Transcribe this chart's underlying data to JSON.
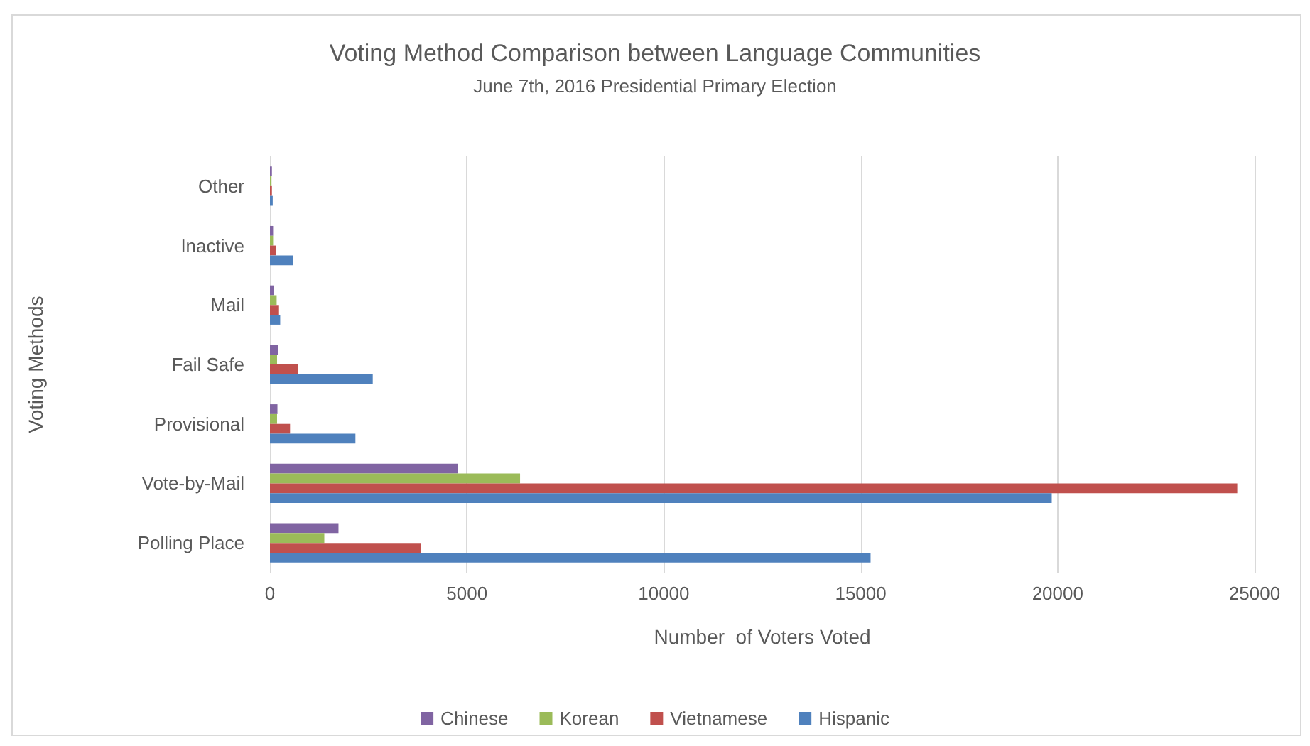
{
  "chart_data": {
    "type": "bar",
    "orientation": "horizontal",
    "title": "Voting Method Comparison between Language Communities",
    "subtitle": "June 7th, 2016 Presidential Primary Election",
    "xlabel": "Number  of Voters Voted",
    "ylabel": "Voting Methods",
    "categories": [
      "Other",
      "Inactive",
      "Mail",
      "Fail Safe",
      "Provisional",
      "Vote-by-Mail",
      "Polling Place"
    ],
    "series": [
      {
        "name": "Chinese",
        "color": "#8064a2",
        "values": [
          50,
          80,
          90,
          200,
          190,
          4780,
          1740
        ]
      },
      {
        "name": "Korean",
        "color": "#9bbb59",
        "values": [
          40,
          80,
          170,
          180,
          180,
          6350,
          1380
        ]
      },
      {
        "name": "Vietnamese",
        "color": "#c0504d",
        "values": [
          50,
          150,
          230,
          720,
          510,
          24560,
          3840
        ]
      },
      {
        "name": "Hispanic",
        "color": "#4f81bd",
        "values": [
          70,
          580,
          260,
          2610,
          2170,
          19850,
          15250
        ]
      }
    ],
    "xlim": [
      0,
      25000
    ],
    "xticks": [
      0,
      5000,
      10000,
      15000,
      20000,
      25000
    ],
    "grid": "x",
    "legend": "bottom"
  }
}
